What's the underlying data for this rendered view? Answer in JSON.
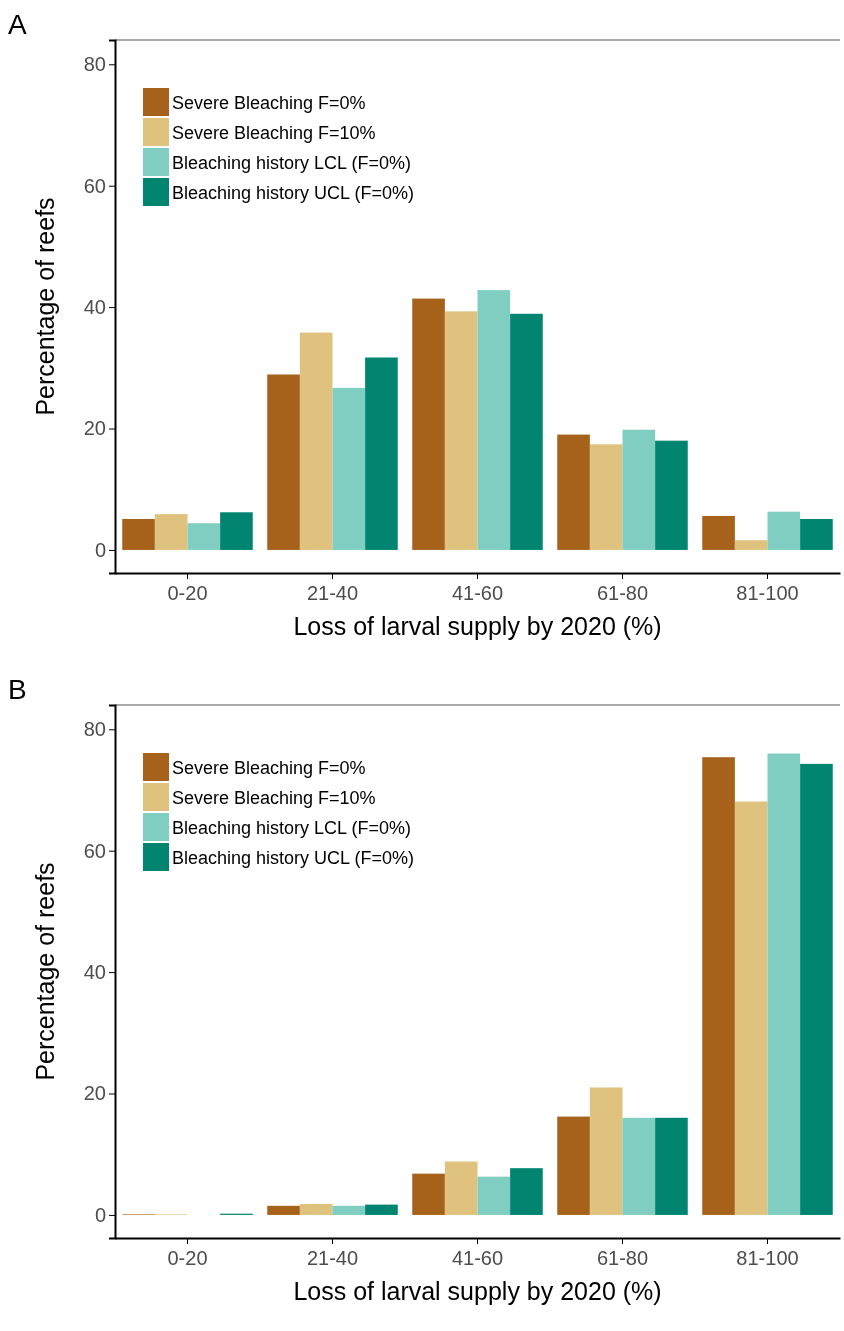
{
  "chart_data": [
    {
      "type": "bar",
      "title": "A",
      "xlabel": "Loss of larval supply by 2020 (%)",
      "ylabel": "Percentage of reefs",
      "categories": [
        "0-20",
        "21-40",
        "41-60",
        "61-80",
        "81-100"
      ],
      "series": [
        {
          "name": "Severe Bleaching F=0%",
          "color": "#a6611a",
          "values": [
            5.1,
            28.9,
            41.4,
            19.0,
            5.6
          ]
        },
        {
          "name": "Severe Bleaching F=10%",
          "color": "#dfc27d",
          "values": [
            5.9,
            35.8,
            39.3,
            17.4,
            1.6
          ]
        },
        {
          "name": "Bleaching history LCL (F=0%)",
          "color": "#80cdc1",
          "values": [
            4.4,
            26.7,
            42.8,
            19.8,
            6.3
          ]
        },
        {
          "name": "Bleaching history UCL (F=0%)",
          "color": "#018571",
          "values": [
            6.2,
            31.7,
            38.9,
            18.0,
            5.1
          ]
        }
      ],
      "ylim": [
        -3.8,
        84
      ],
      "yticks": [
        0,
        20,
        40,
        60,
        80
      ],
      "legend": "top left",
      "grid": false
    },
    {
      "type": "bar",
      "title": "B",
      "xlabel": "Loss of larval supply by 2020 (%)",
      "ylabel": "Percentage of reefs",
      "categories": [
        "0-20",
        "21-40",
        "41-60",
        "61-80",
        "81-100"
      ],
      "series": [
        {
          "name": "Severe Bleaching F=0%",
          "color": "#a6611a",
          "values": [
            0.1,
            1.5,
            6.8,
            16.2,
            75.4
          ]
        },
        {
          "name": "Severe Bleaching F=10%",
          "color": "#dfc27d",
          "values": [
            0.1,
            1.8,
            8.8,
            21.0,
            68.1
          ]
        },
        {
          "name": "Bleaching history LCL (F=0%)",
          "color": "#80cdc1",
          "values": [
            null,
            1.5,
            6.3,
            16.0,
            76.0
          ]
        },
        {
          "name": "Bleaching history UCL (F=0%)",
          "color": "#018571",
          "values": [
            0.2,
            1.7,
            7.7,
            16.0,
            74.3
          ]
        }
      ],
      "ylim": [
        -3.8,
        84
      ],
      "yticks": [
        0,
        20,
        40,
        60,
        80
      ],
      "legend": "top left",
      "grid": false
    }
  ]
}
